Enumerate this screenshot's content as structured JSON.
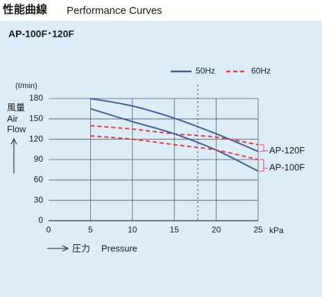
{
  "heading": {
    "title_ja": "性能曲線",
    "title_en": "Performance Curves"
  },
  "chart_data": {
    "type": "line",
    "title": "AP-100F･120F",
    "y_unit": "(ℓ/min)",
    "y_label_ja": "風量",
    "y_label_en_1": "Air",
    "y_label_en_2": "Flow",
    "x_label_ja": "圧力",
    "x_label_en": "Pressure",
    "x_unit": "kPa",
    "x": [
      5,
      10,
      15,
      20,
      25
    ],
    "legend": [
      {
        "name": "50Hz",
        "color": "#3b5ca6",
        "dashed": false
      },
      {
        "name": "60Hz",
        "color": "#e33b3b",
        "dashed": true
      }
    ],
    "series": [
      {
        "name": "AP-120F",
        "curves": [
          [
            180,
            169,
            151,
            128,
            102
          ],
          [
            140,
            135,
            128,
            123,
            112
          ]
        ]
      },
      {
        "name": "AP-100F",
        "curves": [
          [
            165,
            146,
            128,
            104,
            73
          ],
          [
            125,
            120,
            112,
            104,
            90
          ]
        ]
      }
    ],
    "bracket_color": "#e0609a",
    "reference_x": 17.8,
    "xlim": [
      0,
      25
    ],
    "xticks": [
      0,
      5,
      10,
      15,
      20,
      25
    ],
    "ylim": [
      0,
      180
    ],
    "yticks": [
      0,
      30,
      60,
      90,
      120,
      150,
      180
    ],
    "grid": true
  }
}
